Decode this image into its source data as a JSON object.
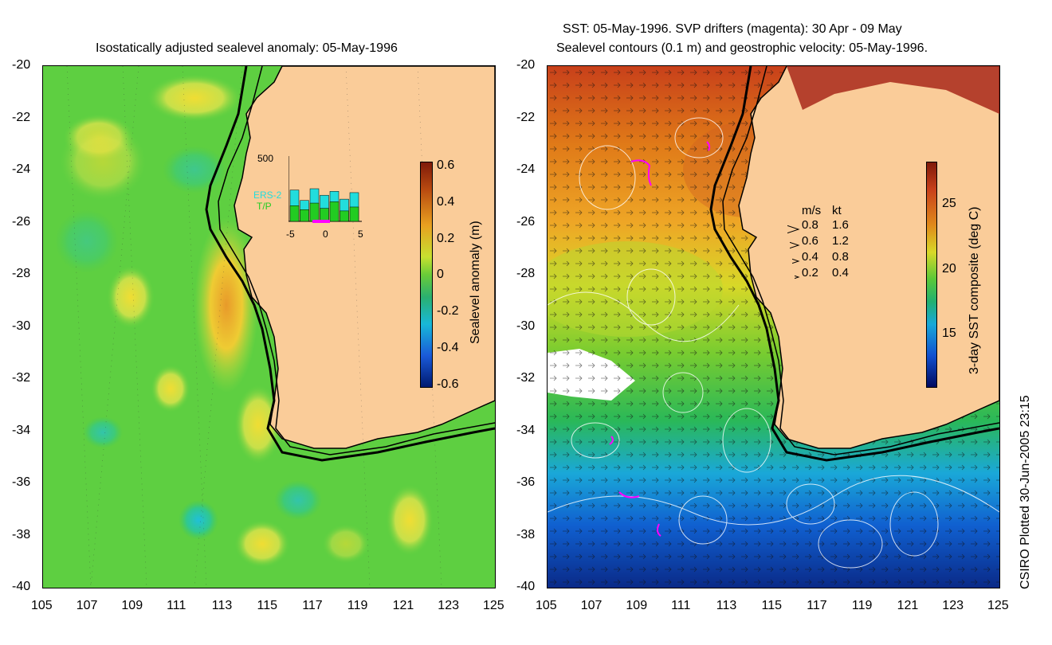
{
  "left_panel": {
    "title": "Isostatically adjusted sealevel anomaly: 05-May-1996",
    "x_ticks": [
      "105",
      "107",
      "109",
      "111",
      "113",
      "115",
      "117",
      "119",
      "121",
      "123",
      "125"
    ],
    "y_ticks": [
      "-20",
      "-22",
      "-24",
      "-26",
      "-28",
      "-30",
      "-32",
      "-34",
      "-36",
      "-38",
      "-40"
    ],
    "colorbar": {
      "label": "Sealevel anomaly (m)",
      "ticks": [
        "0.6",
        "0.4",
        "0.2",
        "0",
        "-0.2",
        "-0.4",
        "-0.6"
      ]
    },
    "inset": {
      "ymax_label": "500",
      "series1": "ERS-2",
      "series2": "T/P",
      "x_ticks": [
        "-5",
        "0",
        "5"
      ],
      "ers2_values": [
        240,
        160,
        250,
        200,
        230,
        170,
        220
      ],
      "tp_values": [
        120,
        90,
        140,
        100,
        150,
        80,
        110
      ]
    }
  },
  "right_panel": {
    "title_line1": "SST: 05-May-1996. SVP drifters (magenta): 30 Apr - 09 May",
    "title_line2": "Sealevel contours (0.1 m) and geostrophic velocity: 05-May-1996.",
    "x_ticks": [
      "105",
      "107",
      "109",
      "111",
      "113",
      "115",
      "117",
      "119",
      "121",
      "123",
      "125"
    ],
    "y_ticks": [
      "-20",
      "-22",
      "-24",
      "-26",
      "-28",
      "-30",
      "-32",
      "-34",
      "-36",
      "-38",
      "-40"
    ],
    "colorbar": {
      "label": "3-day SST composite (deg C)",
      "ticks": [
        "25",
        "20",
        "15"
      ]
    },
    "velocity_legend": {
      "header_ms": "m/s",
      "header_kt": "kt",
      "rows": [
        {
          "ms": "0.8",
          "kt": "1.6"
        },
        {
          "ms": "0.6",
          "kt": "1.2"
        },
        {
          "ms": "0.4",
          "kt": "0.8"
        },
        {
          "ms": "0.2",
          "kt": "0.4"
        }
      ]
    }
  },
  "credit": "CSIRO Plotted 30-Jun-2005 23:15",
  "colors": {
    "land": "#facc99",
    "coast": "#000000",
    "ers2": "#22dddd",
    "tp": "#22cc22",
    "drifter": "#ff00ff"
  }
}
